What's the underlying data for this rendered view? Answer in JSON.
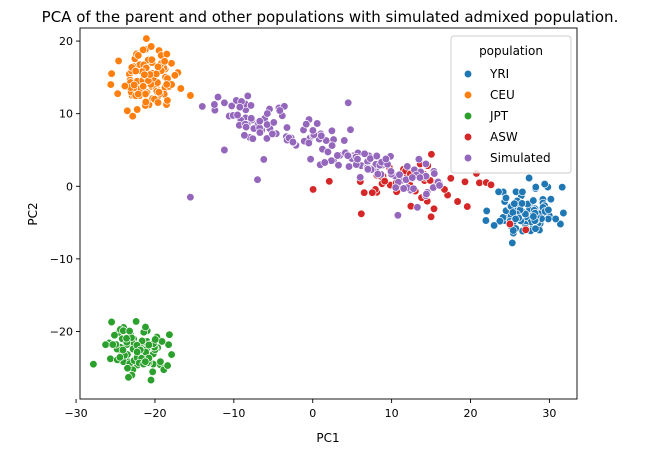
{
  "chart_data": {
    "type": "scatter",
    "title": "PCA of the parent and other populations with simulated admixed population.",
    "xlabel": "PC1",
    "ylabel": "PC2",
    "xlim": [
      -29.5,
      33.5
    ],
    "ylim": [
      -29.3,
      21.8
    ],
    "xticks": [
      -30,
      -20,
      -10,
      0,
      10,
      20,
      30
    ],
    "yticks": [
      -20,
      -10,
      0,
      10,
      20
    ],
    "grid": false,
    "legend": {
      "title": "population",
      "placement": "top-right",
      "entries": [
        "YRI",
        "CEU",
        "JPT",
        "ASW",
        "Simulated"
      ]
    },
    "series": [
      {
        "name": "YRI",
        "color": "#1f77b4",
        "cluster": {
          "cx": 27,
          "cy": -3.5,
          "sx": 2.0,
          "sy": 1.7,
          "n": 90,
          "seed": 11
        },
        "points": [
          [
            30.8,
            -4.5
          ],
          [
            29.8,
            -0.1
          ],
          [
            25.3,
            -7.8
          ],
          [
            24.5,
            -1.6
          ],
          [
            29.4,
            0.3
          ]
        ]
      },
      {
        "name": "CEU",
        "color": "#ff7f0e",
        "cluster": {
          "cx": -21,
          "cy": 14.5,
          "sx": 1.7,
          "sy": 1.9,
          "n": 95,
          "seed": 23
        },
        "points": [
          [
            -25.5,
            15.5
          ],
          [
            -15.5,
            12.5
          ],
          [
            -21.5,
            18.8
          ],
          [
            -18.5,
            18.2
          ],
          [
            -23.5,
            10.4
          ]
        ]
      },
      {
        "name": "JPT",
        "color": "#2ca02c",
        "cluster": {
          "cx": -22,
          "cy": -22.5,
          "sx": 1.8,
          "sy": 1.6,
          "n": 85,
          "seed": 37
        },
        "points": [
          [
            -27.8,
            -24.5
          ],
          [
            -20.5,
            -26.7
          ],
          [
            -25.5,
            -18.7
          ],
          [
            -18.4,
            -24.7
          ],
          [
            -21.2,
            -19.4
          ]
        ]
      },
      {
        "name": "ASW",
        "color": "#d62728",
        "cluster": {
          "cx": 12,
          "cy": 0.5,
          "sx": 4.5,
          "sy": 1.8,
          "n": 50,
          "seed": 53
        },
        "points": [
          [
            22.0,
            0.5
          ],
          [
            27.0,
            -6.0
          ],
          [
            15.0,
            -4.2
          ],
          [
            19.6,
            -2.8
          ],
          [
            22.6,
            0.2
          ],
          [
            25.0,
            -5.2
          ],
          [
            9.2,
            3.6
          ],
          [
            17.5,
            1.1
          ]
        ]
      },
      {
        "name": "Simulated",
        "color": "#9467bd",
        "cluster": {
          "cx": 0,
          "cy": 6,
          "sx": 1.0,
          "sy": 1.6,
          "n": 150,
          "seed": 71,
          "line": {
            "x0": -11,
            "y0": 11,
            "x1": 16,
            "y1": -0.5
          }
        },
        "points": [
          [
            -15.5,
            -1.5
          ],
          [
            -7.0,
            0.9
          ],
          [
            -11.2,
            5.0
          ],
          [
            -14.0,
            11.0
          ],
          [
            -11.2,
            11.5
          ],
          [
            4.5,
            11.5
          ],
          [
            10.8,
            -4.0
          ],
          [
            13.6,
            1.2
          ],
          [
            -6.2,
            3.7
          ]
        ]
      }
    ]
  }
}
